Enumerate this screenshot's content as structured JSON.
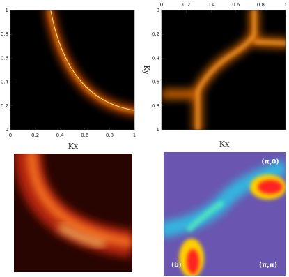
{
  "chart_data": [
    {
      "type": "heatmap",
      "xlabel": "Kx",
      "xlim": [
        0,
        1
      ],
      "xticks": [
        0,
        0.2,
        0.4,
        0.6,
        0.8,
        1
      ],
      "ylim": [
        0,
        1
      ],
      "yticks": [
        0,
        0.2,
        0.4,
        0.6,
        0.8,
        1
      ]
    },
    {
      "type": "heatmap",
      "xlabel": "Kx",
      "ylabel": "Ky",
      "xlim": [
        0,
        1
      ],
      "xticks": [
        0,
        0.2,
        0.4,
        0.6,
        0.8,
        1
      ],
      "ylim": [
        0,
        1
      ],
      "yticks": [
        0,
        0.2,
        0.4,
        0.6,
        0.8,
        1
      ]
    },
    {
      "type": "heatmap"
    },
    {
      "type": "heatmap",
      "annotations": [
        "(π,0)",
        "(b)",
        "(π,π)"
      ]
    }
  ]
}
